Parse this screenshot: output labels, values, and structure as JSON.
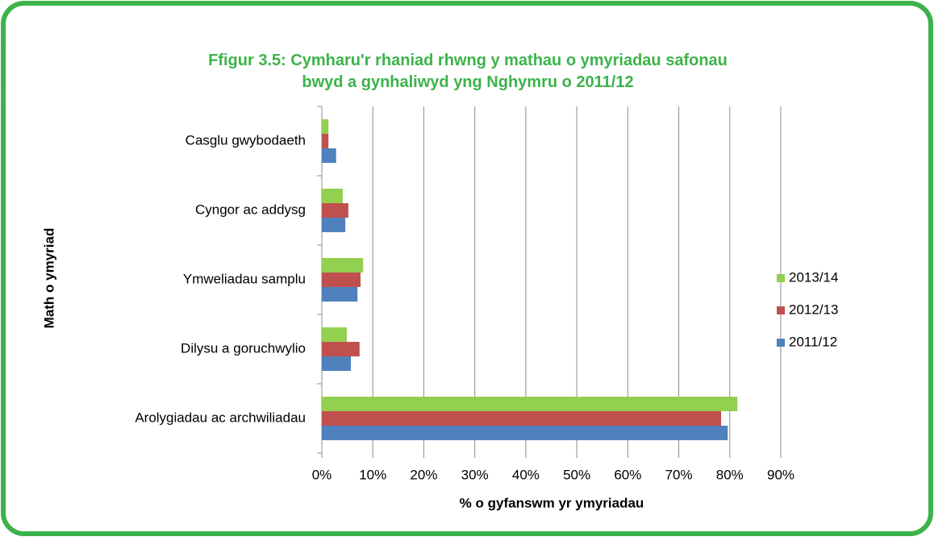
{
  "chart_data": {
    "type": "hbar",
    "title": "Ffigur 3.5: Cymharu'r rhaniad rhwng y mathau o ymyriadau safonau bwyd a gynhaliwyd yng Nghymru o 2011/12",
    "xlabel": "% o gyfanswm yr ymyriadau",
    "ylabel": "Math o ymyriad",
    "categories": [
      "Casglu gwybodaeth",
      "Cyngor ac addysg",
      "Ymweliadau samplu",
      "Dilysu a goruchwylio",
      "Arolygiadau ac archwiliadau"
    ],
    "series": [
      {
        "name": "2013/14",
        "color": "#92d050",
        "values": [
          1.3,
          4.1,
          8.1,
          4.9,
          81.5
        ]
      },
      {
        "name": "2012/13",
        "color": "#c0504d",
        "values": [
          1.3,
          5.2,
          7.6,
          7.4,
          78.3
        ]
      },
      {
        "name": "2011/12",
        "color": "#4f81bd",
        "values": [
          2.8,
          4.6,
          7.0,
          5.7,
          79.6
        ]
      }
    ],
    "xlim": [
      0,
      90
    ],
    "xticks": [
      {
        "value": 0,
        "label": "0%"
      },
      {
        "value": 10,
        "label": "10%"
      },
      {
        "value": 20,
        "label": "20%"
      },
      {
        "value": 30,
        "label": "30%"
      },
      {
        "value": 40,
        "label": "40%"
      },
      {
        "value": 50,
        "label": "50%"
      },
      {
        "value": 60,
        "label": "60%"
      },
      {
        "value": 70,
        "label": "70%"
      },
      {
        "value": 80,
        "label": "80%"
      },
      {
        "value": 90,
        "label": "90%"
      }
    ],
    "grid": true,
    "legend": "right"
  }
}
